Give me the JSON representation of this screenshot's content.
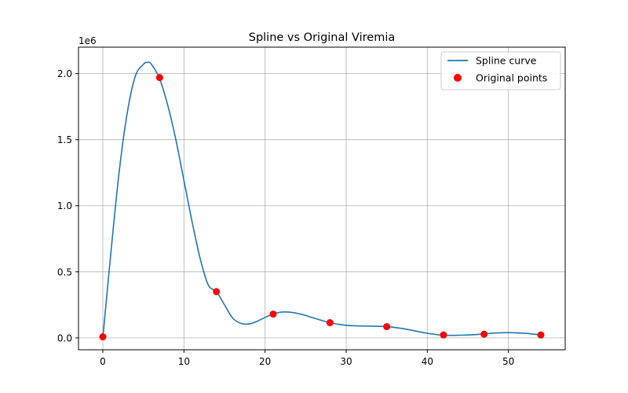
{
  "chart_data": {
    "type": "line",
    "title": "Spline vs Original Viremia",
    "xlabel": "",
    "ylabel": "",
    "y_offset_label": "1e6",
    "xlim": [
      -3,
      57
    ],
    "ylim": [
      -0.09,
      2.2
    ],
    "x_ticks": [
      0,
      10,
      20,
      30,
      40,
      50
    ],
    "x_tick_labels": [
      "0",
      "10",
      "20",
      "30",
      "40",
      "50"
    ],
    "y_ticks": [
      0.0,
      0.5,
      1.0,
      1.5,
      2.0
    ],
    "y_tick_labels": [
      "0.0",
      "0.5",
      "1.0",
      "1.5",
      "2.0"
    ],
    "grid": true,
    "legend_position": "top-right",
    "series": [
      {
        "name": "Spline curve",
        "kind": "line",
        "color": "#1f77b4",
        "x": [
          0,
          1,
          2,
          3,
          4,
          5,
          5.5,
          6,
          7,
          8,
          9,
          10,
          11,
          12,
          13,
          14,
          15,
          16,
          17,
          18,
          19,
          20,
          21,
          22,
          23,
          24,
          25,
          26,
          28,
          30,
          32,
          35,
          37,
          40,
          42,
          44,
          46,
          48,
          50,
          52,
          54
        ],
        "y": [
          0.0,
          0.65,
          1.25,
          1.7,
          1.98,
          2.07,
          2.085,
          2.07,
          1.96,
          1.76,
          1.5,
          1.19,
          0.88,
          0.6,
          0.4,
          0.35,
          0.25,
          0.15,
          0.11,
          0.105,
          0.125,
          0.155,
          0.18,
          0.195,
          0.195,
          0.185,
          0.17,
          0.15,
          0.115,
          0.095,
          0.09,
          0.085,
          0.07,
          0.035,
          0.02,
          0.02,
          0.025,
          0.035,
          0.04,
          0.035,
          0.022
        ]
      },
      {
        "name": "Original points",
        "kind": "scatter",
        "color": "#ff0000",
        "x": [
          0,
          7,
          14,
          21,
          28,
          35,
          42,
          47,
          54
        ],
        "y": [
          0.008,
          1.97,
          0.35,
          0.18,
          0.115,
          0.085,
          0.022,
          0.028,
          0.022
        ]
      }
    ]
  }
}
